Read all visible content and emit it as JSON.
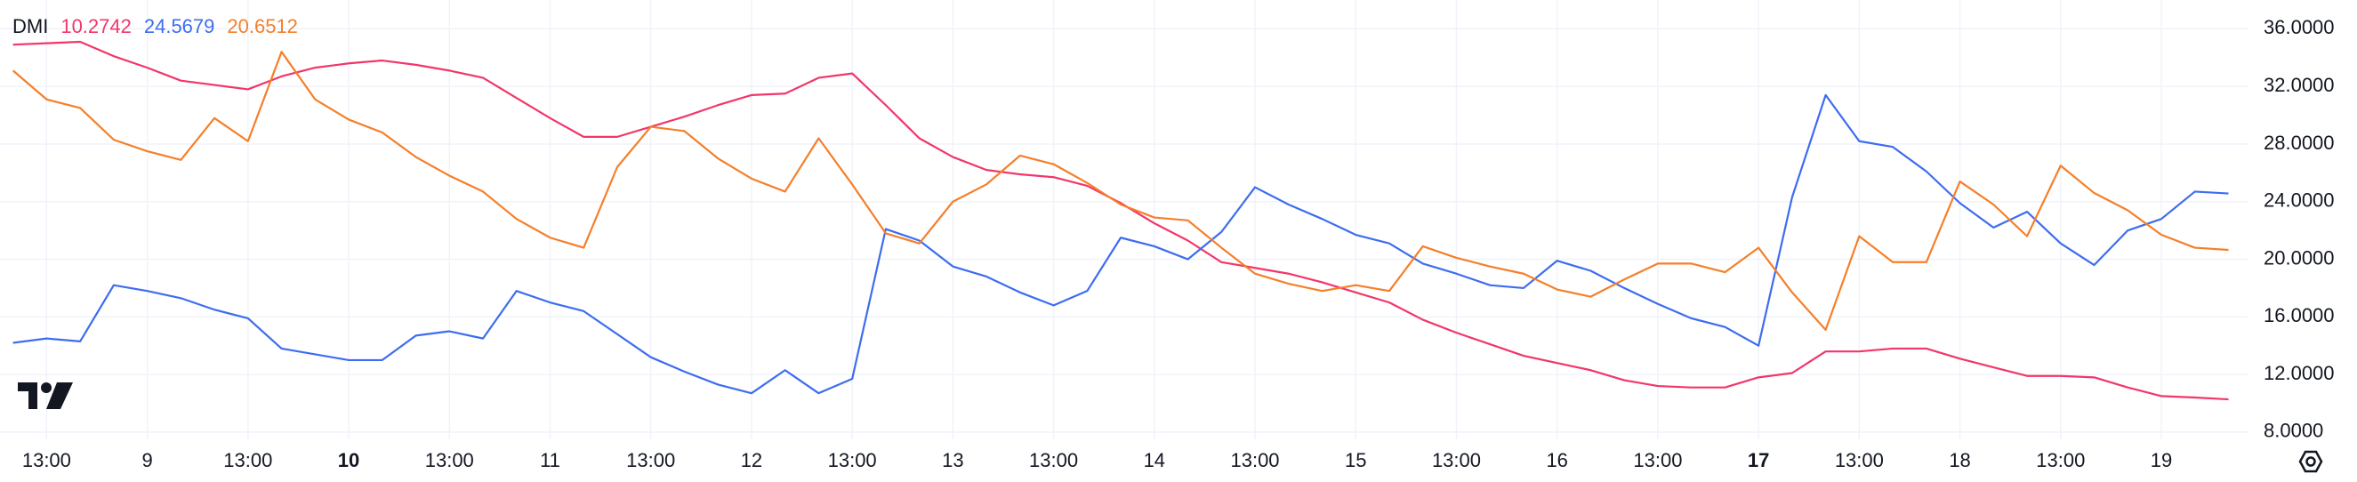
{
  "chart_data": {
    "type": "line",
    "title": "DMI",
    "categories": [
      null,
      "13:00",
      null,
      null,
      "9",
      null,
      null,
      "13:00",
      null,
      null,
      "10",
      null,
      null,
      "13:00",
      null,
      null,
      "11",
      null,
      null,
      "13:00",
      null,
      null,
      "12",
      null,
      null,
      "13:00",
      null,
      null,
      "13",
      null,
      null,
      "13:00",
      null,
      null,
      "14",
      null,
      null,
      "13:00",
      null,
      null,
      "15",
      null,
      null,
      "13:00",
      null,
      null,
      "16",
      null,
      null,
      "13:00",
      null,
      null,
      "17",
      null,
      null,
      "13:00",
      null,
      null,
      "18",
      null,
      null,
      "13:00",
      null,
      null,
      "19",
      null,
      null
    ],
    "bold_category_indices": [
      10,
      52
    ],
    "series": [
      {
        "color": "#f23669",
        "values": [
          34.9,
          35.0,
          35.1,
          34.1,
          33.3,
          32.4,
          32.1,
          31.8,
          32.7,
          33.3,
          33.6,
          33.8,
          33.5,
          33.1,
          32.6,
          31.2,
          29.8,
          28.5,
          28.5,
          29.2,
          29.9,
          30.7,
          31.4,
          31.5,
          32.6,
          32.9,
          30.7,
          28.4,
          27.1,
          26.2,
          25.9,
          25.7,
          25.1,
          23.9,
          22.5,
          21.3,
          19.8,
          19.4,
          19.0,
          18.4,
          17.7,
          17.0,
          15.8,
          14.9,
          14.1,
          13.3,
          12.8,
          12.3,
          11.6,
          11.2,
          11.1,
          11.1,
          11.8,
          12.1,
          13.6,
          13.6,
          13.8,
          13.8,
          13.1,
          12.5,
          11.9,
          11.9,
          11.8,
          11.1,
          10.5,
          10.4,
          10.2742
        ]
      },
      {
        "color": "#3d6cf0",
        "values": [
          14.2,
          14.5,
          14.3,
          18.2,
          17.8,
          17.3,
          16.5,
          15.9,
          13.8,
          13.4,
          13.0,
          13.0,
          14.7,
          15.0,
          14.5,
          17.8,
          17.0,
          16.4,
          14.8,
          13.2,
          12.2,
          11.3,
          10.7,
          12.3,
          10.7,
          11.7,
          22.1,
          21.3,
          19.5,
          18.8,
          17.7,
          16.8,
          17.8,
          21.5,
          20.9,
          20.0,
          21.9,
          25.0,
          23.8,
          22.8,
          21.7,
          21.1,
          19.7,
          19.0,
          18.2,
          18.0,
          19.9,
          19.2,
          18.0,
          16.9,
          15.9,
          15.3,
          14.0,
          24.3,
          31.4,
          28.2,
          27.8,
          26.1,
          23.9,
          22.2,
          23.3,
          21.1,
          19.6,
          22.0,
          22.8,
          24.7,
          24.5679
        ]
      },
      {
        "color": "#f57f2a",
        "values": [
          33.1,
          31.1,
          30.5,
          28.3,
          27.5,
          26.9,
          29.8,
          28.2,
          34.4,
          31.1,
          29.7,
          28.8,
          27.1,
          25.8,
          24.7,
          22.8,
          21.5,
          20.8,
          26.4,
          29.2,
          28.9,
          27.0,
          25.6,
          24.7,
          28.4,
          25.2,
          21.8,
          21.1,
          24.0,
          25.2,
          27.2,
          26.6,
          25.3,
          23.8,
          22.9,
          22.7,
          20.8,
          19.0,
          18.3,
          17.8,
          18.2,
          17.8,
          20.9,
          20.1,
          19.5,
          19.0,
          17.9,
          17.4,
          18.6,
          19.7,
          19.7,
          19.1,
          20.8,
          17.7,
          15.1,
          21.6,
          19.8,
          19.8,
          25.4,
          23.8,
          21.6,
          26.5,
          24.6,
          23.4,
          21.7,
          20.8,
          20.6512
        ]
      }
    ],
    "ylim": [
      7.5,
      38
    ],
    "yticks": [
      {
        "value": 8,
        "label": "8.0000"
      },
      {
        "value": 12,
        "label": "12.0000"
      },
      {
        "value": 16,
        "label": "16.0000"
      },
      {
        "value": 20,
        "label": "20.0000"
      },
      {
        "value": 24,
        "label": "24.0000"
      },
      {
        "value": 28,
        "label": "28.0000"
      },
      {
        "value": 32,
        "label": "32.0000"
      },
      {
        "value": 36,
        "label": "36.0000"
      }
    ],
    "grid": true
  }
}
